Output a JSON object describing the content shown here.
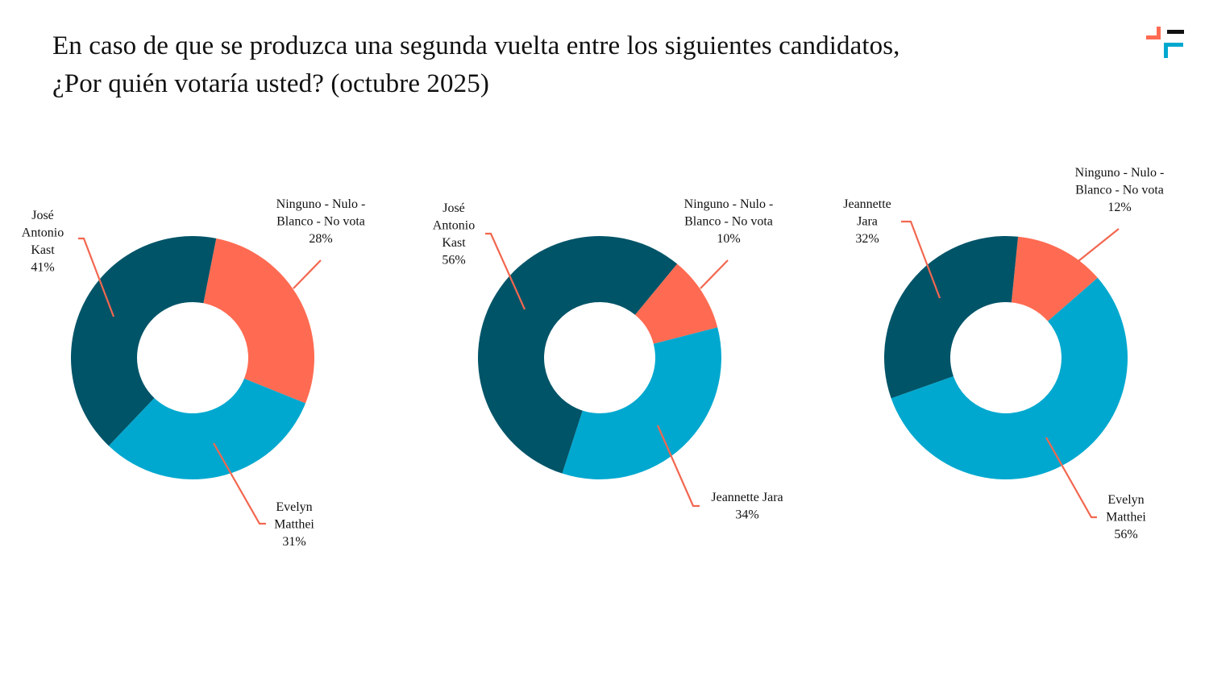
{
  "title": "En caso de que se produzca una segunda vuelta entre los siguientes candidatos, ¿Por quién votaría usted? (octubre 2025)",
  "colors": {
    "dark_teal": "#005468",
    "light_blue": "#00A8CF",
    "coral": "#FF6B52",
    "leader_line": "#F2674F",
    "logo_black": "#111111"
  },
  "logo": {
    "icon": "brand-logo-icon"
  },
  "chart_data": [
    {
      "type": "pie",
      "donut": true,
      "title": "",
      "slices": [
        {
          "label": [
            "Ninguno - Nulo -",
            "Blanco - No vota"
          ],
          "value": 28,
          "display": "28%",
          "color": "#FF6B52"
        },
        {
          "label": [
            "Evelyn",
            "Matthei"
          ],
          "value": 31,
          "display": "31%",
          "color": "#00A8CF"
        },
        {
          "label": [
            "José",
            "Antonio",
            "Kast"
          ],
          "value": 41,
          "display": "41%",
          "color": "#005468"
        }
      ]
    },
    {
      "type": "pie",
      "donut": true,
      "title": "",
      "slices": [
        {
          "label": [
            "Ninguno - Nulo -",
            "Blanco - No vota"
          ],
          "value": 10,
          "display": "10%",
          "color": "#FF6B52"
        },
        {
          "label": [
            "Jeannette Jara"
          ],
          "value": 34,
          "display": "34%",
          "color": "#00A8CF"
        },
        {
          "label": [
            "José",
            "Antonio",
            "Kast"
          ],
          "value": 56,
          "display": "56%",
          "color": "#005468"
        }
      ]
    },
    {
      "type": "pie",
      "donut": true,
      "title": "",
      "slices": [
        {
          "label": [
            "Ninguno - Nulo -",
            "Blanco - No vota"
          ],
          "value": 12,
          "display": "12%",
          "color": "#FF6B52"
        },
        {
          "label": [
            "Evelyn",
            "Matthei"
          ],
          "value": 56,
          "display": "56%",
          "color": "#00A8CF"
        },
        {
          "label": [
            "Jeannette",
            "Jara"
          ],
          "value": 32,
          "display": "32%",
          "color": "#005468"
        }
      ]
    }
  ]
}
